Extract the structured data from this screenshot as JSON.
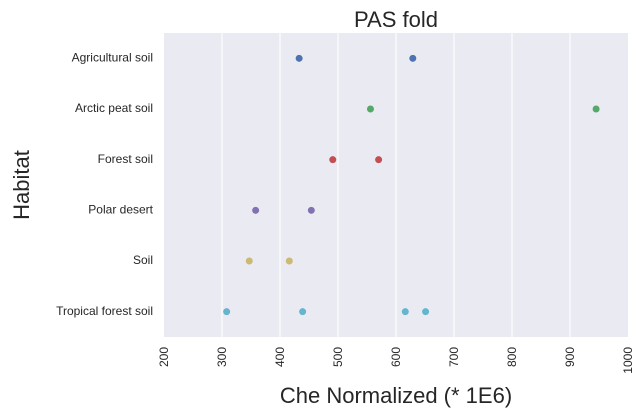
{
  "chart_data": {
    "type": "scatter",
    "title": "PAS fold",
    "xlabel": "Che Normalized (* 1E6)",
    "ylabel": "Habitat",
    "xlim": [
      200,
      1000
    ],
    "xticks": [
      "200",
      "300",
      "400",
      "500",
      "600",
      "700",
      "800",
      "900",
      "1000"
    ],
    "xtick_values": [
      200,
      300,
      400,
      500,
      600,
      700,
      800,
      900,
      1000
    ],
    "categories": [
      "Agricultural soil",
      "Arctic peat soil",
      "Forest soil",
      "Polar desert",
      "Soil",
      "Tropical forest soil"
    ],
    "grid": true,
    "background": "#eaeaf2",
    "series": [
      {
        "category": "Agricultural soil",
        "color": "#4c72b0",
        "values": [
          433,
          629
        ]
      },
      {
        "category": "Arctic peat soil",
        "color": "#55a868",
        "values": [
          556,
          945
        ]
      },
      {
        "category": "Forest soil",
        "color": "#c44e52",
        "values": [
          491,
          570
        ]
      },
      {
        "category": "Polar desert",
        "color": "#8172b2",
        "values": [
          358,
          454
        ]
      },
      {
        "category": "Soil",
        "color": "#ccb974",
        "values": [
          347,
          416
        ]
      },
      {
        "category": "Tropical forest soil",
        "color": "#64b5cd",
        "values": [
          308,
          439,
          616,
          651
        ]
      }
    ]
  }
}
